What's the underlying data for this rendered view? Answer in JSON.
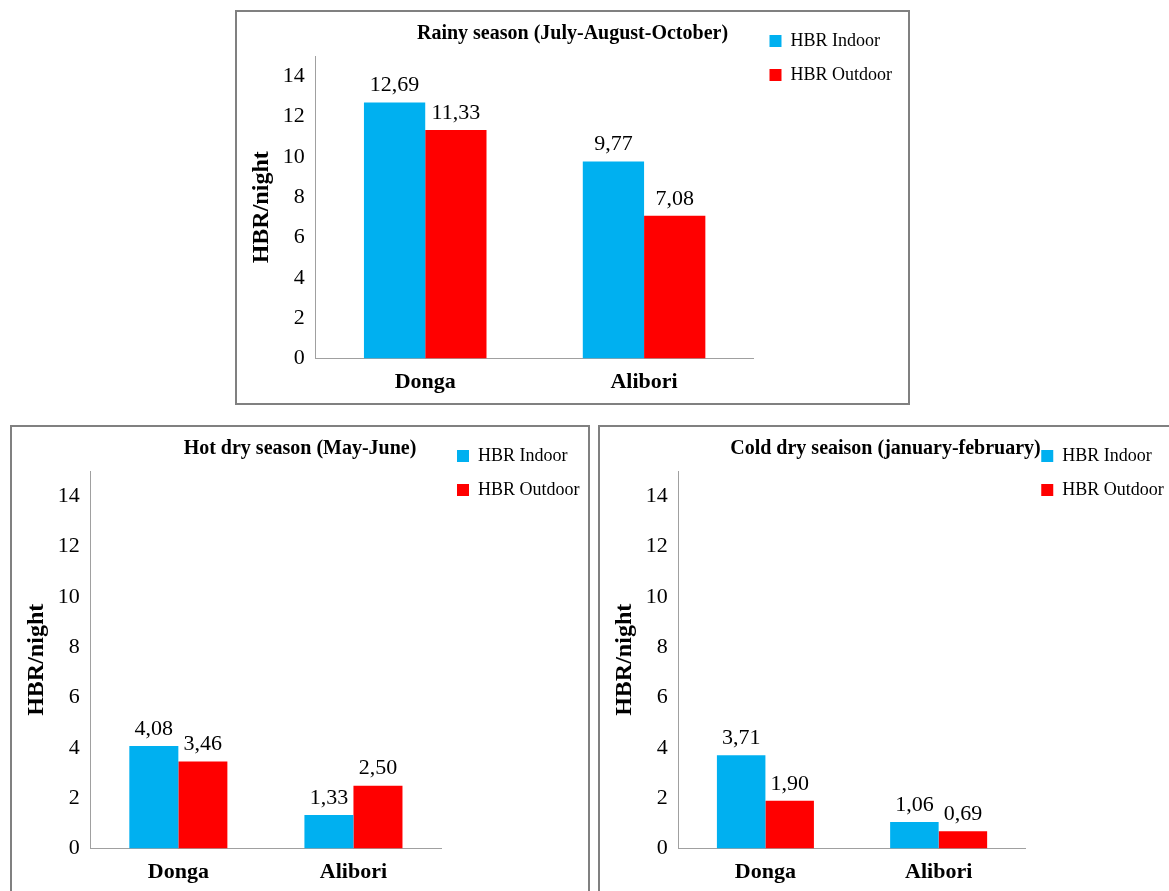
{
  "chart_data": [
    {
      "type": "bar",
      "title": "Rainy season (July-August-October)",
      "ylabel": "HBR/night",
      "categories": [
        "Donga",
        "Alibori"
      ],
      "series": [
        {
          "name": "HBR Indoor",
          "color": "#00b0f0",
          "values": [
            12.69,
            9.77
          ],
          "value_labels": [
            "12,69",
            "9,77"
          ]
        },
        {
          "name": "HBR Outdoor",
          "color": "#ff0000",
          "values": [
            11.33,
            7.08
          ],
          "value_labels": [
            "11,33",
            "7,08"
          ]
        }
      ],
      "ylim": [
        0,
        15
      ],
      "yticks": [
        0,
        2,
        4,
        6,
        8,
        10,
        12,
        14
      ],
      "legend": "top right"
    },
    {
      "type": "bar",
      "title": "Hot dry season (May-June)",
      "ylabel": "HBR/night",
      "categories": [
        "Donga",
        "Alibori"
      ],
      "series": [
        {
          "name": "HBR Indoor",
          "color": "#00b0f0",
          "values": [
            4.08,
            1.33
          ],
          "value_labels": [
            "4,08",
            "1,33"
          ]
        },
        {
          "name": "HBR Outdoor",
          "color": "#ff0000",
          "values": [
            3.46,
            2.5
          ],
          "value_labels": [
            "3,46",
            "2,50"
          ]
        }
      ],
      "ylim": [
        0,
        15
      ],
      "yticks": [
        0,
        2,
        4,
        6,
        8,
        10,
        12,
        14
      ],
      "legend": "top right"
    },
    {
      "type": "bar",
      "title": "Cold dry seaison (january-february)",
      "ylabel": "HBR/night",
      "categories": [
        "Donga",
        "Alibori"
      ],
      "series": [
        {
          "name": "HBR Indoor",
          "color": "#00b0f0",
          "values": [
            3.71,
            1.06
          ],
          "value_labels": [
            "3,71",
            "1,06"
          ]
        },
        {
          "name": "HBR Outdoor",
          "color": "#ff0000",
          "values": [
            1.9,
            0.69
          ],
          "value_labels": [
            "1,90",
            "0,69"
          ]
        }
      ],
      "ylim": [
        0,
        15
      ],
      "yticks": [
        0,
        2,
        4,
        6,
        8,
        10,
        12,
        14
      ],
      "legend": "top right"
    }
  ]
}
